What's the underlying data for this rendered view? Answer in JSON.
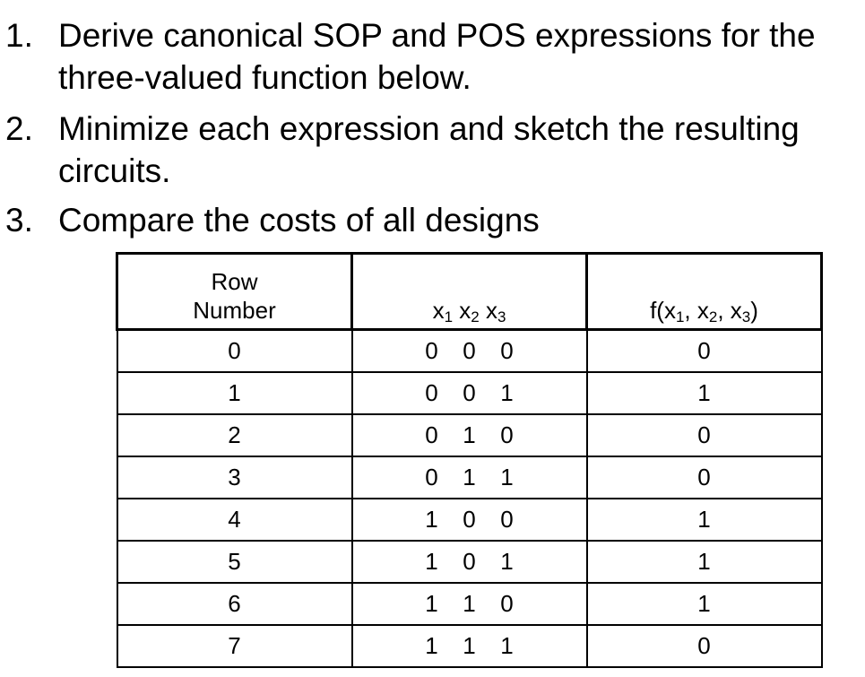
{
  "tasks": [
    {
      "number": "1.",
      "lines": [
        "Derive canonical SOP and POS expressions for the",
        "three-valued function below."
      ]
    },
    {
      "number": "2.",
      "lines": [
        "Minimize each expression and sketch the resulting",
        "circuits."
      ]
    },
    {
      "number": "3.",
      "lines": [
        "Compare the costs of all designs"
      ]
    }
  ],
  "table": {
    "header": {
      "row_number_line1": "Row",
      "row_number_line2": "Number",
      "inputs": [
        {
          "var": "x",
          "sub": "1"
        },
        {
          "var": "x",
          "sub": "2"
        },
        {
          "var": "x",
          "sub": "3"
        }
      ],
      "output": {
        "prefix": "f(x",
        "s1": "1",
        "sep1": ", x",
        "s2": "2",
        "sep2": ", x",
        "s3": "3",
        "suffix": ")"
      }
    },
    "rows": [
      {
        "row": "0",
        "x1": "0",
        "x2": "0",
        "x3": "0",
        "f": "0"
      },
      {
        "row": "1",
        "x1": "0",
        "x2": "0",
        "x3": "1",
        "f": "1"
      },
      {
        "row": "2",
        "x1": "0",
        "x2": "1",
        "x3": "0",
        "f": "0"
      },
      {
        "row": "3",
        "x1": "0",
        "x2": "1",
        "x3": "1",
        "f": "0"
      },
      {
        "row": "4",
        "x1": "1",
        "x2": "0",
        "x3": "0",
        "f": "1"
      },
      {
        "row": "5",
        "x1": "1",
        "x2": "0",
        "x3": "1",
        "f": "1"
      },
      {
        "row": "6",
        "x1": "1",
        "x2": "1",
        "x3": "0",
        "f": "1"
      },
      {
        "row": "7",
        "x1": "1",
        "x2": "1",
        "x3": "1",
        "f": "0"
      }
    ]
  }
}
